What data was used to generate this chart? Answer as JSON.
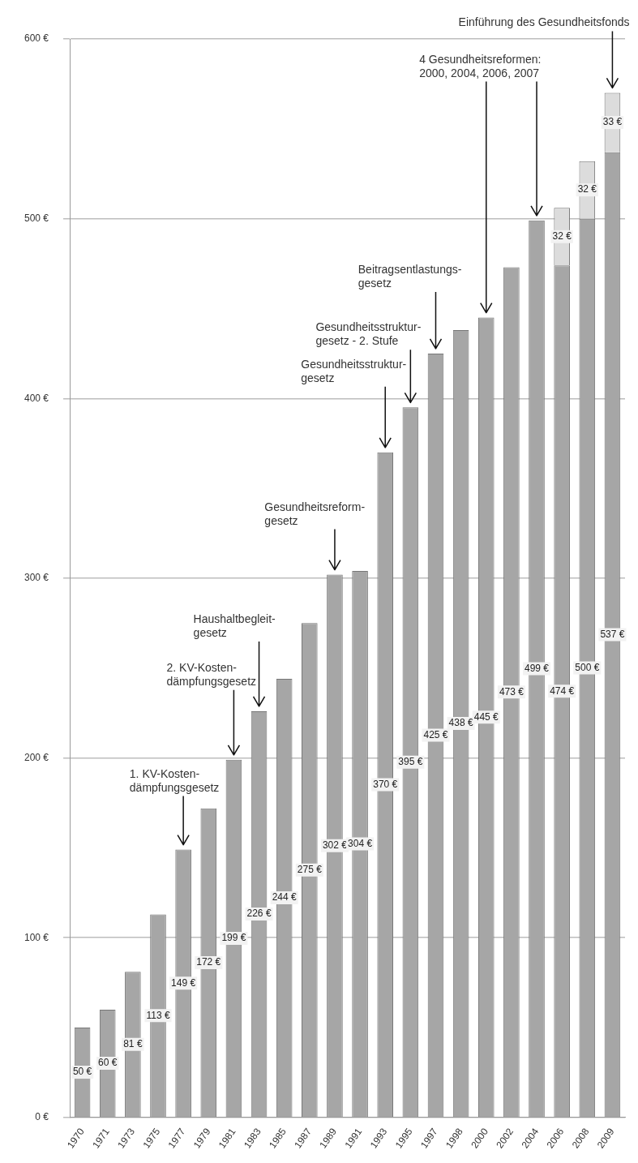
{
  "chart_data": {
    "type": "bar",
    "stacked": true,
    "categories": [
      "1970",
      "1971",
      "1973",
      "1975",
      "1977",
      "1979",
      "1981",
      "1983",
      "1985",
      "1987",
      "1989",
      "1991",
      "1993",
      "1995",
      "1997",
      "1998",
      "2000",
      "2002",
      "2004",
      "2006",
      "2008",
      "2009"
    ],
    "series": [
      {
        "color": "#a6a6a6",
        "values": [
          50,
          60,
          81,
          113,
          149,
          172,
          199,
          226,
          244,
          275,
          302,
          304,
          370,
          395,
          425,
          438,
          445,
          473,
          499,
          474,
          500,
          537
        ],
        "value_labels": [
          "50 €",
          "60 €",
          "81 €",
          "113 €",
          "149 €",
          "172 €",
          "199 €",
          "226 €",
          "244 €",
          "275 €",
          "302 €",
          "304 €",
          "370 €",
          "395 €",
          "425 €",
          "438 €",
          "445 €",
          "473 €",
          "499 €",
          "474 €",
          "500 €",
          "537 €"
        ]
      },
      {
        "color": "#dcdcdc",
        "values": [
          null,
          null,
          null,
          null,
          null,
          null,
          null,
          null,
          null,
          null,
          null,
          null,
          null,
          null,
          null,
          null,
          null,
          null,
          null,
          32,
          32,
          33
        ],
        "value_labels": [
          null,
          null,
          null,
          null,
          null,
          null,
          null,
          null,
          null,
          null,
          null,
          null,
          null,
          null,
          null,
          null,
          null,
          null,
          null,
          "32 €",
          "32 €",
          "33 €"
        ]
      }
    ],
    "ylim": [
      0,
      600
    ],
    "yticks": [
      {
        "value": 0,
        "label": "0 €"
      },
      {
        "value": 100,
        "label": "100 €"
      },
      {
        "value": 200,
        "label": "200 €"
      },
      {
        "value": 300,
        "label": "300 €"
      },
      {
        "value": 400,
        "label": "400 €"
      },
      {
        "value": 500,
        "label": "500 €"
      },
      {
        "value": 600,
        "label": "600 €"
      }
    ],
    "grid": "y",
    "annotations": [
      {
        "text": "1. KV-Kosten-\ndämpfungsgesetz",
        "x": "1977",
        "y": 149
      },
      {
        "text": "2. KV-Kosten-\ndämpfungsgesetz",
        "x": "1981",
        "y": 199
      },
      {
        "text": "Haushaltbegleit-\ngesetz",
        "x": "1983",
        "y": 226
      },
      {
        "text": "Gesundheitsreform-\ngesetz",
        "x": "1989",
        "y": 302
      },
      {
        "text": "Gesundheitsstruktur-\ngesetz",
        "x": "1993",
        "y": 370
      },
      {
        "text": "Gesundheitsstruktur-\ngesetz - 2. Stufe",
        "x": "1995",
        "y": 395
      },
      {
        "text": "Beitragsentlastungs-\ngesetz",
        "x": "1997",
        "y": 425
      },
      {
        "text": "4 Gesundheitsreformen:\n2000, 2004, 2006, 2007",
        "x": "2000",
        "y": 445
      },
      {
        "text": "Einführung des Gesundheitsfonds",
        "x": "2009",
        "y": 570
      }
    ]
  }
}
